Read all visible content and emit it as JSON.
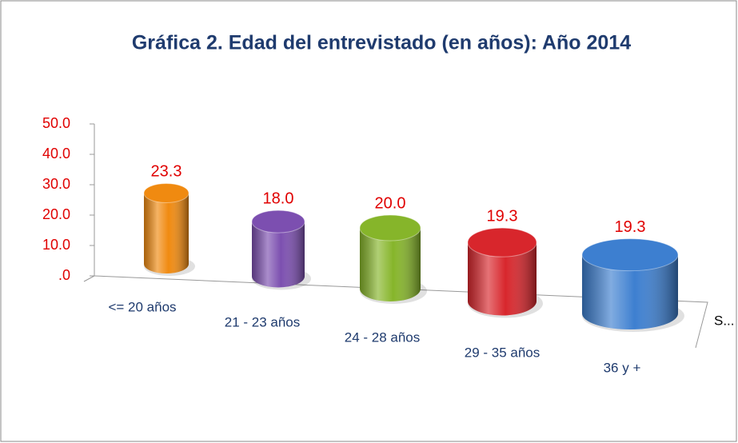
{
  "chart_data": {
    "type": "bar3d",
    "title": "Gráfica 2.  Edad del entrevistado (en años): Año 2014",
    "categories": [
      "<= 20 años",
      "21 - 23 años",
      "24 - 28 años",
      "29 - 35 años",
      "36 y +"
    ],
    "series": [
      {
        "name": "S...",
        "values": [
          23.3,
          18,
          20,
          19.3,
          19.3
        ],
        "value_labels": [
          "23.3",
          "18.0",
          "20.0",
          "19.3",
          "19.3"
        ]
      }
    ],
    "colors": [
      "#f08a10",
      "#7c4fb0",
      "#86b52a",
      "#d8262c",
      "#3d7fd0"
    ],
    "ylim": [
      0,
      50
    ],
    "yticks": [
      {
        "value": 0,
        "label": ".0"
      },
      {
        "value": 10,
        "label": "10.0"
      },
      {
        "value": 20,
        "label": "20.0"
      },
      {
        "value": 30,
        "label": "30.0"
      },
      {
        "value": 40,
        "label": "40.0"
      },
      {
        "value": 50,
        "label": "50.0"
      }
    ]
  }
}
